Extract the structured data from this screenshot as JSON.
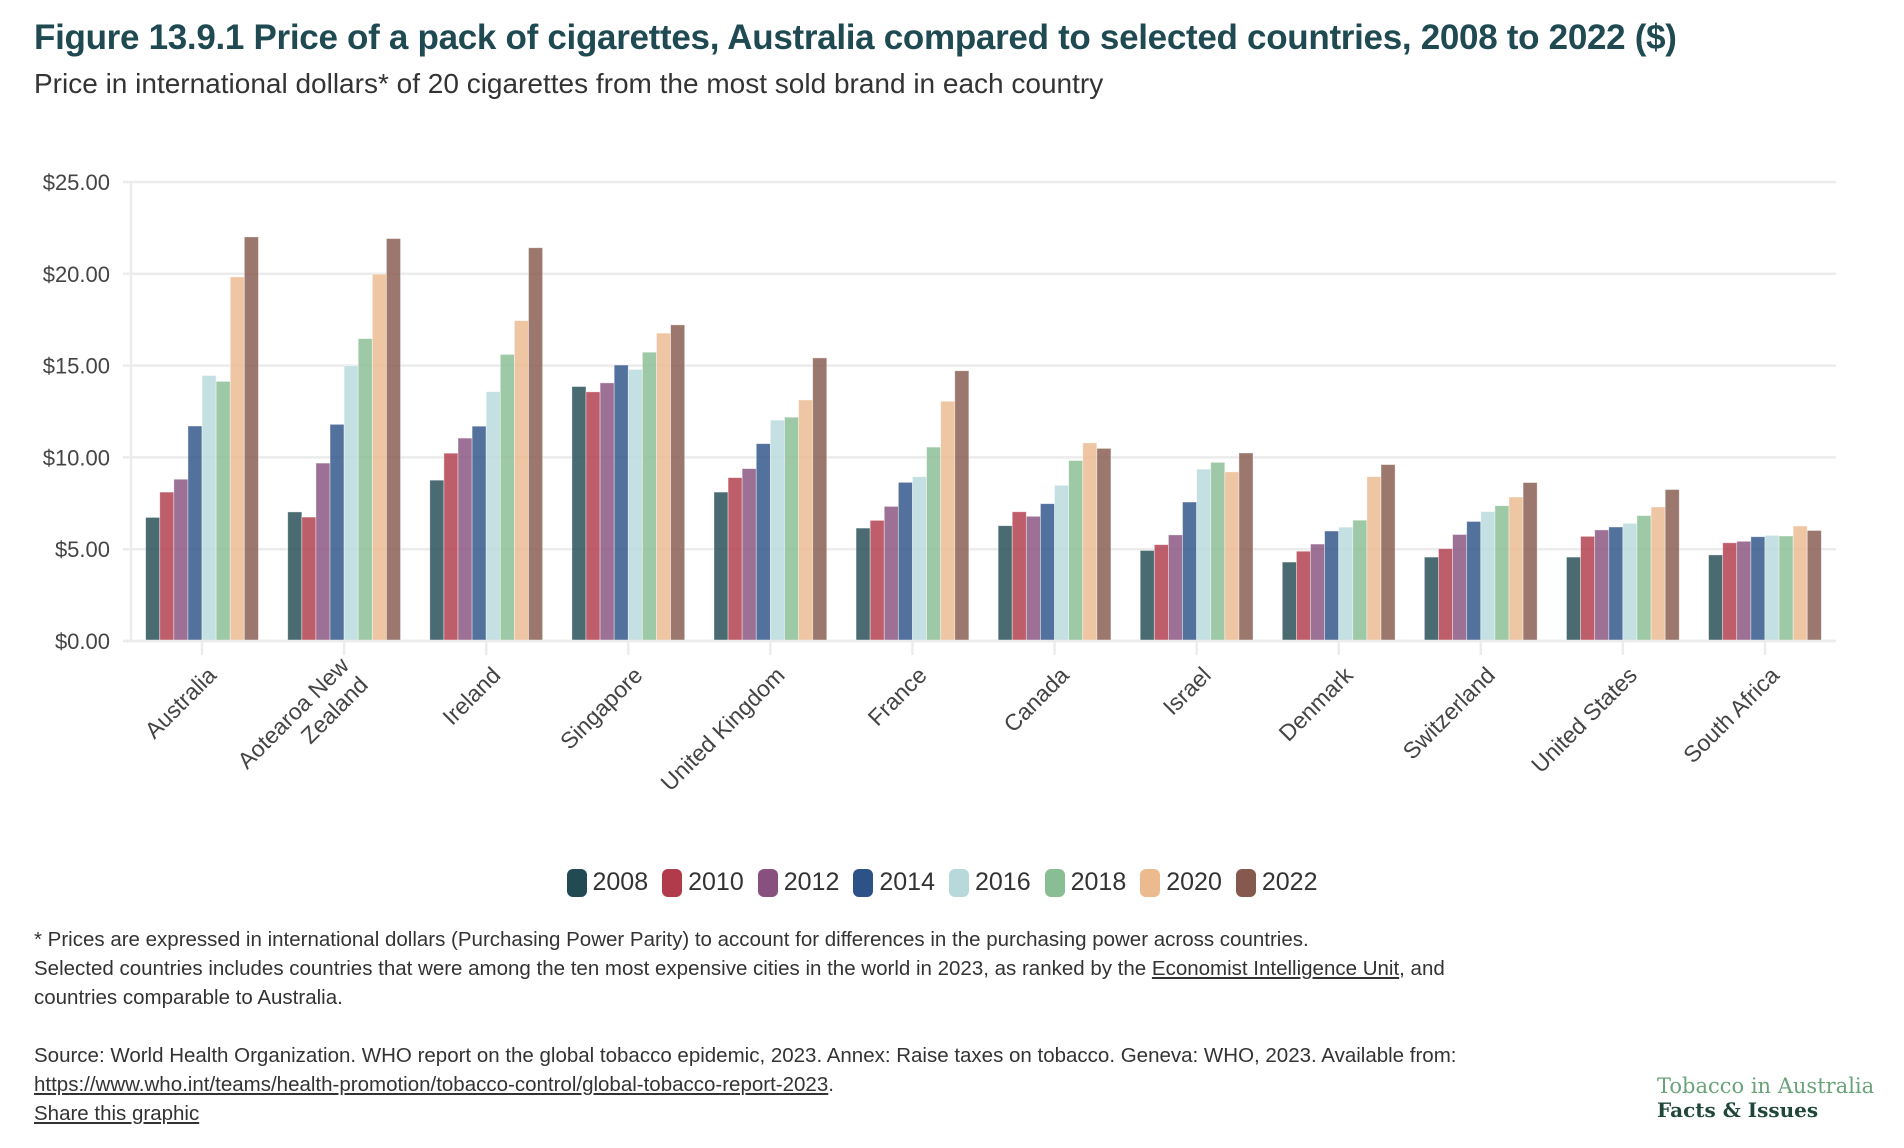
{
  "header": {
    "title": "Figure 13.9.1 Price of a pack of cigarettes, Australia compared to selected countries, 2008 to 2022 ($)",
    "subtitle": "Price in international dollars* of 20 cigarettes from the most sold brand in each country"
  },
  "chart_data": {
    "type": "bar",
    "title": "Figure 13.9.1 Price of a pack of cigarettes, Australia compared to selected countries, 2008 to 2022 ($)",
    "subtitle": "Price in international dollars* of 20 cigarettes from the most sold brand in each country",
    "xlabel": "",
    "ylabel": "",
    "ylim": [
      0,
      25
    ],
    "yticks": [
      0,
      5,
      10,
      15,
      20,
      25
    ],
    "ytick_labels": [
      "$0.00",
      "$5.00",
      "$10.00",
      "$15.00",
      "$20.00",
      "$25.00"
    ],
    "grid": true,
    "legend_position": "bottom-center",
    "categories": [
      [
        "Australia"
      ],
      [
        "Aotearoa New",
        "Zealand"
      ],
      [
        "Ireland"
      ],
      [
        "Singapore"
      ],
      [
        "United Kingdom"
      ],
      [
        "France"
      ],
      [
        "Canada"
      ],
      [
        "Israel"
      ],
      [
        "Denmark"
      ],
      [
        "Switzerland"
      ],
      [
        "United States"
      ],
      [
        "South Africa"
      ]
    ],
    "series": [
      {
        "name": "2008",
        "color": "#214a52",
        "values": [
          6.73,
          7.03,
          8.76,
          13.86,
          8.11,
          6.15,
          6.28,
          4.93,
          4.3,
          4.57,
          4.57,
          4.69
        ]
      },
      {
        "name": "2010",
        "color": "#b13a4b",
        "values": [
          8.11,
          6.75,
          10.23,
          13.57,
          8.9,
          6.57,
          7.04,
          5.25,
          4.89,
          5.03,
          5.7,
          5.35
        ]
      },
      {
        "name": "2012",
        "color": "#87507e",
        "values": [
          8.81,
          9.69,
          11.05,
          14.06,
          9.39,
          7.33,
          6.79,
          5.78,
          5.28,
          5.8,
          6.05,
          5.43
        ]
      },
      {
        "name": "2014",
        "color": "#2d5288",
        "values": [
          11.71,
          11.8,
          11.7,
          15.03,
          10.75,
          8.64,
          7.48,
          7.57,
          5.99,
          6.51,
          6.21,
          5.68
        ]
      },
      {
        "name": "2016",
        "color": "#b7d9dc",
        "values": [
          14.46,
          14.99,
          13.58,
          14.79,
          12.03,
          8.95,
          8.48,
          9.36,
          6.2,
          7.05,
          6.41,
          5.75
        ]
      },
      {
        "name": "2018",
        "color": "#89bd93",
        "values": [
          14.14,
          16.47,
          15.61,
          15.73,
          12.19,
          10.56,
          9.83,
          9.73,
          6.58,
          7.37,
          6.83,
          5.72
        ]
      },
      {
        "name": "2020",
        "color": "#ecba8f",
        "values": [
          19.83,
          19.98,
          17.45,
          16.77,
          13.13,
          13.06,
          10.79,
          9.21,
          8.95,
          7.84,
          7.3,
          6.26
        ]
      },
      {
        "name": "2022",
        "color": "#85594d",
        "values": [
          22.01,
          21.92,
          21.42,
          17.22,
          15.42,
          14.72,
          10.49,
          10.24,
          9.61,
          8.63,
          8.25,
          6.02
        ]
      }
    ]
  },
  "notes": {
    "footnote": "* Prices are expressed in international dollars (Purchasing Power Parity) to account for differences in the purchasing power across countries.",
    "selected_prefix": "Selected countries includes countries that were among the ten most expensive cities in the world in 2023, as ranked by the ",
    "selected_link": "Economist Intelligence Unit",
    "selected_suffix": ", and",
    "selected_line2": "countries comparable to Australia.",
    "source": "Source: World Health Organization. WHO report on the global tobacco epidemic, 2023. Annex: Raise taxes on tobacco. Geneva: WHO, 2023. Available from:",
    "source_link": "https://www.who.int/teams/health-promotion/tobacco-control/global-tobacco-report-2023",
    "source_suffix": ".",
    "share_link": "Share this graphic"
  },
  "brand": {
    "line1": "Tobacco in Australia",
    "line2": "Facts & Issues"
  }
}
